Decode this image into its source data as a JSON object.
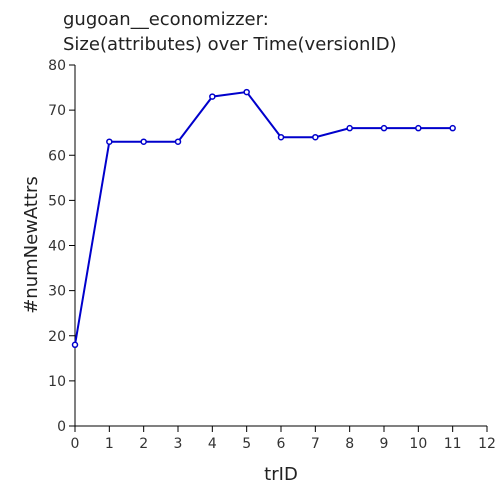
{
  "chart_data": {
    "type": "line",
    "title_lines": [
      "gugoan__economizzer:",
      "Size(attributes) over Time(versionID)"
    ],
    "xlabel": "trID",
    "ylabel": "#numNewAttrs",
    "xlim": [
      0,
      12
    ],
    "ylim": [
      0,
      80
    ],
    "xticks": [
      0,
      1,
      2,
      3,
      4,
      5,
      6,
      7,
      8,
      9,
      10,
      11,
      12
    ],
    "yticks": [
      0,
      10,
      20,
      30,
      40,
      50,
      60,
      70,
      80
    ],
    "grid": false,
    "line_color": "#0000cc",
    "series": [
      {
        "x": [
          0,
          1,
          2,
          3,
          4,
          5,
          6,
          7,
          8,
          9,
          10,
          11
        ],
        "values": [
          18,
          63,
          63,
          63,
          73,
          74,
          64,
          64,
          66,
          66,
          66,
          66
        ]
      }
    ]
  }
}
